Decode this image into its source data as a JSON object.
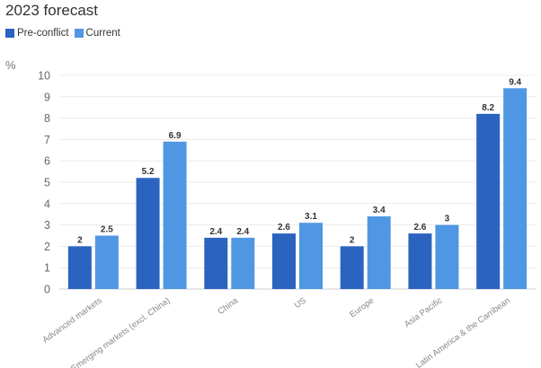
{
  "chart_data": {
    "type": "bar",
    "title": "2023 forecast",
    "ylabel": "%",
    "ylim": [
      0,
      10
    ],
    "yticks": [
      0,
      1,
      2,
      3,
      4,
      5,
      6,
      7,
      8,
      9,
      10
    ],
    "grid": true,
    "legend_position": "top-left",
    "categories": [
      "Advanced markets",
      "Emerging markets (excl. China)",
      "China",
      "US",
      "Europe",
      "Asia Pacific",
      "Latin America & the Carribean"
    ],
    "series": [
      {
        "name": "Pre-conflict",
        "color": "#2b63c0",
        "values": [
          2,
          5.2,
          2.4,
          2.6,
          2,
          2.6,
          8.2
        ]
      },
      {
        "name": "Current",
        "color": "#4f97e3",
        "values": [
          2.5,
          6.9,
          2.4,
          3.1,
          3.4,
          3,
          9.4
        ]
      }
    ]
  }
}
